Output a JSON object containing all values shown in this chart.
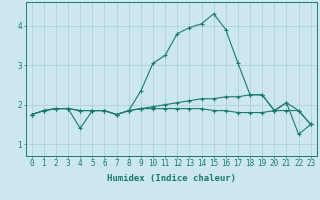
{
  "xlabel": "Humidex (Indice chaleur)",
  "background_color": "#cce8ee",
  "grid_color": "#aacdd6",
  "line_color": "#1a7a6e",
  "x": [
    0,
    1,
    2,
    3,
    4,
    5,
    6,
    7,
    8,
    9,
    10,
    11,
    12,
    13,
    14,
    15,
    16,
    17,
    18,
    19,
    20,
    21,
    22,
    23
  ],
  "series1": [
    1.75,
    1.85,
    1.9,
    1.9,
    1.4,
    1.85,
    1.85,
    1.75,
    1.85,
    2.35,
    3.05,
    3.25,
    3.8,
    3.95,
    4.05,
    4.3,
    3.9,
    3.05,
    2.25,
    2.25,
    1.85,
    2.05,
    1.25,
    1.5
  ],
  "series2": [
    1.75,
    1.85,
    1.9,
    1.9,
    1.85,
    1.85,
    1.85,
    1.75,
    1.85,
    1.9,
    1.95,
    2.0,
    2.05,
    2.1,
    2.15,
    2.15,
    2.2,
    2.2,
    2.25,
    2.25,
    1.85,
    2.05,
    1.85,
    1.5
  ],
  "series3": [
    1.75,
    1.85,
    1.9,
    1.9,
    1.85,
    1.85,
    1.85,
    1.75,
    1.85,
    1.9,
    1.9,
    1.9,
    1.9,
    1.9,
    1.9,
    1.85,
    1.85,
    1.8,
    1.8,
    1.8,
    1.85,
    1.85,
    1.85,
    1.5
  ],
  "ylim": [
    0.7,
    4.6
  ],
  "yticks": [
    1,
    2,
    3,
    4
  ],
  "tick_fontsize": 5.5,
  "xlabel_fontsize": 6.5,
  "marker_size": 2.5,
  "lw": 0.8
}
